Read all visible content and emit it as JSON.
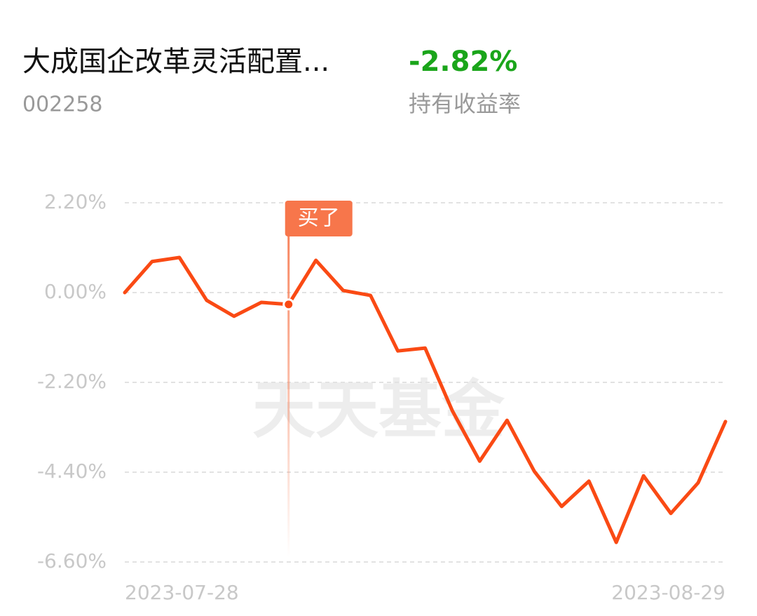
{
  "header": {
    "name": "大成国企改革灵活配置...",
    "code": "002258",
    "return": "-2.82%",
    "return_label": "持有收益率"
  },
  "chart_data": {
    "type": "line",
    "watermark": "天天基金",
    "categories": [
      "2023-07-28",
      null,
      null,
      null,
      null,
      null,
      null,
      null,
      null,
      null,
      null,
      null,
      null,
      null,
      null,
      null,
      null,
      null,
      null,
      null,
      null,
      null,
      "2023-08-29"
    ],
    "values": [
      0.0,
      0.76,
      0.86,
      -0.19,
      -0.58,
      -0.24,
      -0.29,
      0.79,
      0.05,
      -0.07,
      -1.43,
      -1.36,
      -2.9,
      -4.13,
      -3.13,
      -4.38,
      -5.24,
      -4.62,
      -6.12,
      -4.49,
      -5.41,
      -4.66,
      -3.16
    ],
    "color": "#fa4a14",
    "ylim": [
      -6.6,
      2.2
    ],
    "yticks": [
      {
        "value": 2.2,
        "label": "2.20%"
      },
      {
        "value": 0,
        "label": "0.00%"
      },
      {
        "value": -2.2,
        "label": "-2.20%"
      },
      {
        "value": -4.4,
        "label": "-4.40%"
      },
      {
        "value": -6.6,
        "label": "-6.60%"
      }
    ],
    "grid": true,
    "buy_marker": {
      "label": "买了",
      "index": 6
    }
  }
}
